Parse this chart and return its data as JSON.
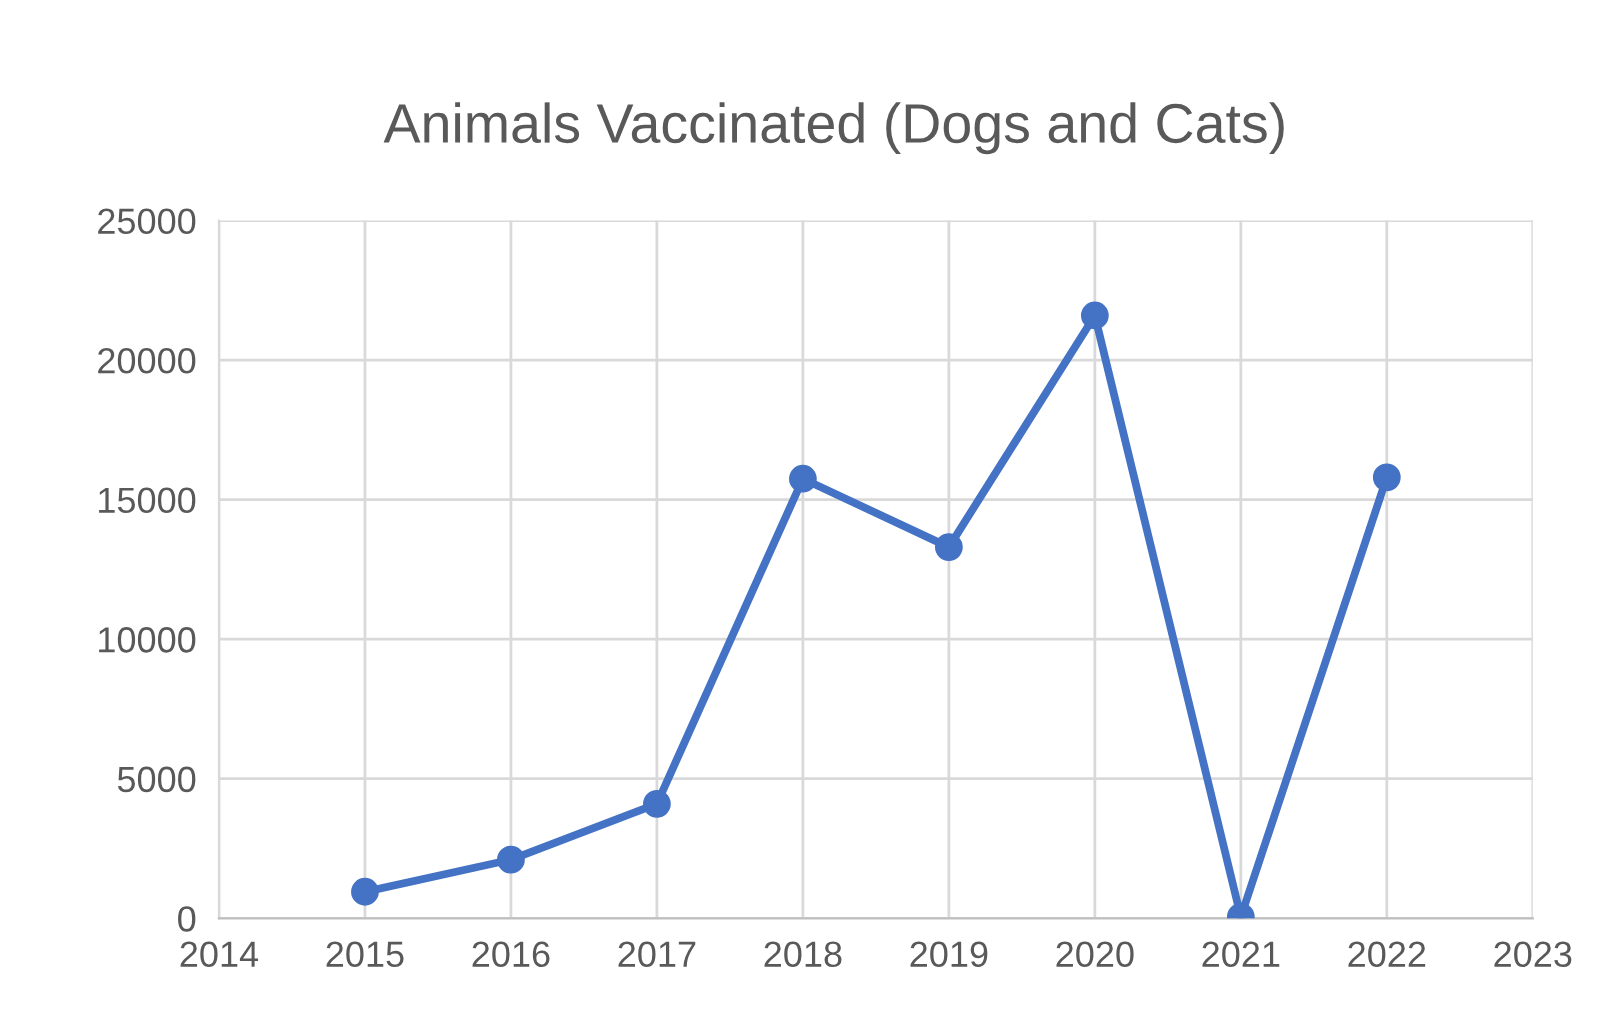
{
  "chart_data": {
    "type": "line",
    "title": "Animals Vaccinated (Dogs and Cats)",
    "x": [
      2015,
      2016,
      2017,
      2018,
      2019,
      2020,
      2021,
      2022
    ],
    "series": [
      {
        "color": "#4472c4",
        "values": [
          950,
          2100,
          4100,
          15750,
          13300,
          21600,
          50,
          15800
        ]
      }
    ],
    "xlim": [
      2014,
      2023
    ],
    "xticks": [
      2014,
      2015,
      2016,
      2017,
      2018,
      2019,
      2020,
      2021,
      2022,
      2023
    ],
    "ylim": [
      0,
      25000
    ],
    "yticks": [
      0,
      5000,
      10000,
      15000,
      20000,
      25000
    ],
    "grid": true,
    "marker": "circle",
    "line_style": "solid"
  }
}
